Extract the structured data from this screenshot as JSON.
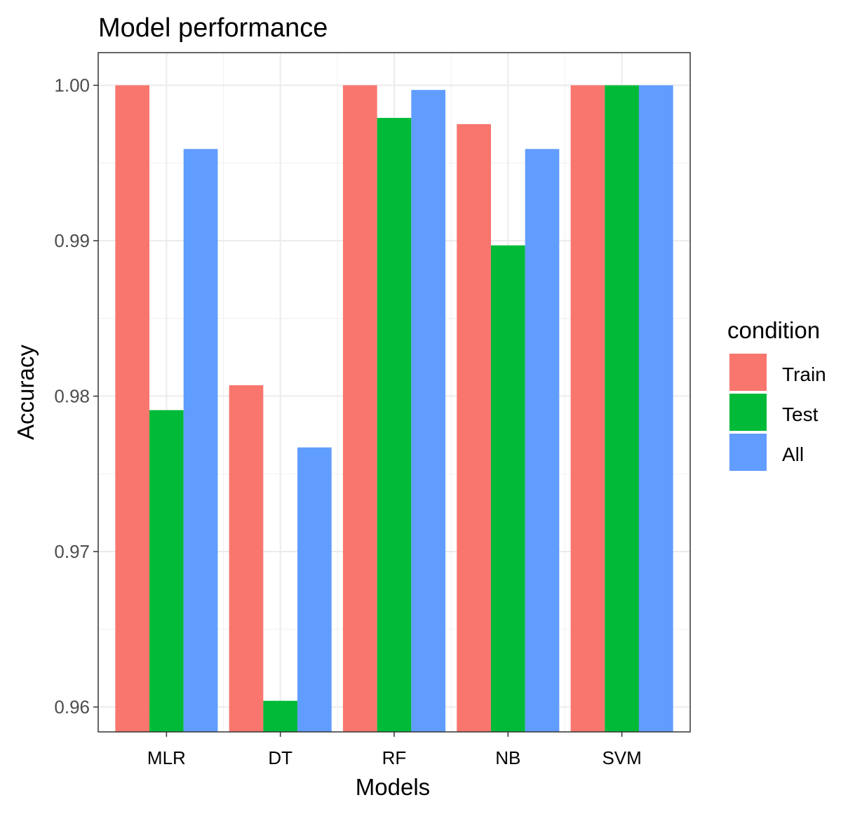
{
  "chart_data": {
    "type": "bar",
    "title": "Model performance",
    "xlabel": "Models",
    "ylabel": "Accuracy",
    "categories": [
      "MLR",
      "DT",
      "RF",
      "NB",
      "SVM"
    ],
    "series": [
      {
        "name": "Train",
        "color": "#F8766D",
        "values": [
          1.0,
          0.9807,
          1.0,
          0.9975,
          1.0
        ]
      },
      {
        "name": "Test",
        "color": "#00BA38",
        "values": [
          0.9791,
          0.9604,
          0.9979,
          0.9897,
          1.0
        ]
      },
      {
        "name": "All",
        "color": "#619CFF",
        "values": [
          0.9959,
          0.9767,
          0.9997,
          0.9959,
          1.0
        ]
      }
    ],
    "ylim": [
      0.9584,
      1.0021
    ],
    "yticks": [
      0.96,
      0.97,
      0.98,
      0.99,
      1.0
    ],
    "ytick_labels": [
      "0.96",
      "0.97",
      "0.98",
      "0.99",
      "1.00"
    ],
    "legend": {
      "title": "condition",
      "position": "right"
    },
    "grid": true
  }
}
